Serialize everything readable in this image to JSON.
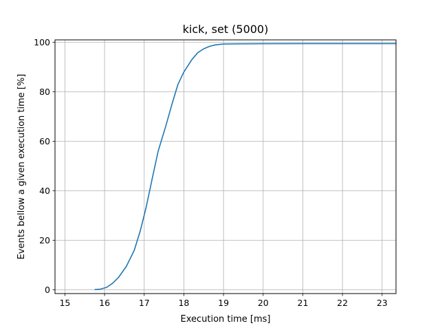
{
  "chart_data": {
    "type": "line",
    "title": "kick, set (5000)",
    "xlabel": "Execution time [ms]",
    "ylabel": "Events bellow a given execution time [%]",
    "xlim": [
      14.75,
      23.35
    ],
    "ylim": [
      -1.5,
      101.0
    ],
    "xticks": [
      15,
      16,
      17,
      18,
      19,
      20,
      21,
      22,
      23
    ],
    "xtick_labels": [
      "15",
      "16",
      "17",
      "18",
      "19",
      "20",
      "21",
      "22",
      "23"
    ],
    "yticks": [
      0,
      20,
      40,
      60,
      80,
      100
    ],
    "ytick_labels": [
      "0",
      "20",
      "40",
      "60",
      "80",
      "100"
    ],
    "grid": true,
    "series": [
      {
        "color": "#1f77b4",
        "x": [
          15.75,
          15.9,
          16.05,
          16.2,
          16.35,
          16.55,
          16.75,
          16.9,
          17.05,
          17.2,
          17.35,
          17.55,
          17.7,
          17.85,
          18.0,
          18.2,
          18.35,
          18.5,
          18.65,
          18.8,
          19.0,
          19.3,
          20.0,
          21.0,
          22.0,
          23.35
        ],
        "y": [
          0.1,
          0.3,
          1.0,
          2.6,
          5.0,
          9.5,
          16.0,
          23.8,
          33.5,
          44.8,
          56.0,
          66.5,
          75.0,
          83.0,
          88.0,
          93.0,
          95.8,
          97.4,
          98.4,
          99.0,
          99.3,
          99.4,
          99.45,
          99.5,
          99.5,
          99.5
        ]
      }
    ]
  }
}
